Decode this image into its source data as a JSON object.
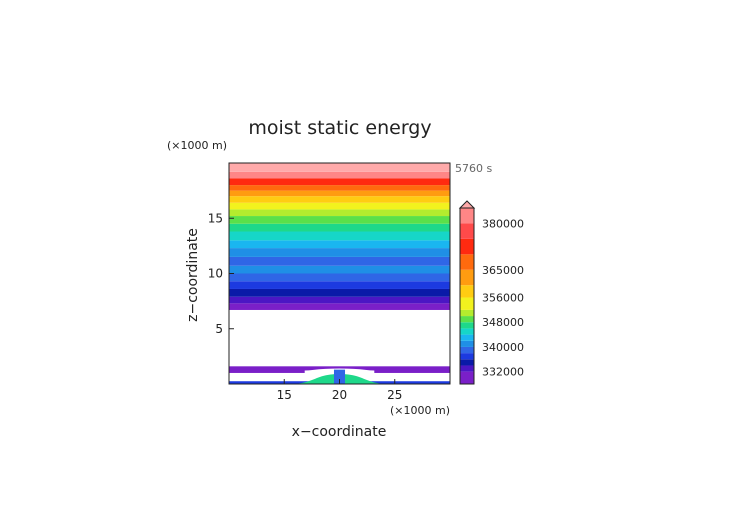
{
  "chart_data": {
    "type": "heatmap",
    "title": "moist static energy",
    "xlabel": "x−coordinate",
    "ylabel": "z−coordinate",
    "x_unit": "(×1000 m)",
    "y_unit": "(×1000 m)",
    "time_label": "5760 s",
    "xlim": [
      10,
      30
    ],
    "ylim": [
      0,
      20
    ],
    "x_ticks": [
      15,
      20,
      25
    ],
    "y_ticks": [
      5,
      10,
      15
    ],
    "colorbar": {
      "min": 328000,
      "max": 385000,
      "extend": "max",
      "tick_values": [
        332000,
        340000,
        348000,
        356000,
        365000,
        380000
      ],
      "tick_labels": [
        "332000",
        "340000",
        "348000",
        "356000",
        "365000",
        "380000"
      ],
      "levels": [
        {
          "lo": 328000,
          "hi": 332000,
          "color": "#7a1fc8"
        },
        {
          "lo": 332000,
          "hi": 334000,
          "color": "#4b16c4"
        },
        {
          "lo": 334000,
          "hi": 336000,
          "color": "#0a1aa8"
        },
        {
          "lo": 336000,
          "hi": 338000,
          "color": "#1c3ae0"
        },
        {
          "lo": 338000,
          "hi": 340000,
          "color": "#2f66e6"
        },
        {
          "lo": 340000,
          "hi": 342000,
          "color": "#1f8fe6"
        },
        {
          "lo": 342000,
          "hi": 344000,
          "color": "#1ab6f0"
        },
        {
          "lo": 344000,
          "hi": 346000,
          "color": "#16d6c8"
        },
        {
          "lo": 346000,
          "hi": 348000,
          "color": "#1ed88a"
        },
        {
          "lo": 348000,
          "hi": 350000,
          "color": "#5be04a"
        },
        {
          "lo": 350000,
          "hi": 352000,
          "color": "#b4ec2e"
        },
        {
          "lo": 352000,
          "hi": 356000,
          "color": "#f2f21e"
        },
        {
          "lo": 356000,
          "hi": 360000,
          "color": "#ffcc12"
        },
        {
          "lo": 360000,
          "hi": 365000,
          "color": "#ff9c10"
        },
        {
          "lo": 365000,
          "hi": 370000,
          "color": "#ff6a0e"
        },
        {
          "lo": 370000,
          "hi": 375000,
          "color": "#ff2a10"
        },
        {
          "lo": 375000,
          "hi": 380000,
          "color": "#ff4a4a"
        },
        {
          "lo": 380000,
          "hi": 385000,
          "color": "#ff8686"
        },
        {
          "lo": 385000,
          "hi": 400000,
          "color": "#ffaaaa"
        }
      ]
    },
    "upper_layer_bands": [
      {
        "z0": 6.7,
        "z1": 7.3,
        "value": 330000
      },
      {
        "z0": 7.3,
        "z1": 7.9,
        "value": 333000
      },
      {
        "z0": 7.9,
        "z1": 8.6,
        "value": 335000
      },
      {
        "z0": 8.6,
        "z1": 9.3,
        "value": 337000
      },
      {
        "z0": 9.3,
        "z1": 10.0,
        "value": 339000
      },
      {
        "z0": 10.0,
        "z1": 10.7,
        "value": 341000
      },
      {
        "z0": 10.7,
        "z1": 11.5,
        "value": 339000
      },
      {
        "z0": 11.5,
        "z1": 12.3,
        "value": 341000
      },
      {
        "z0": 12.3,
        "z1": 13.0,
        "value": 343000
      },
      {
        "z0": 13.0,
        "z1": 13.8,
        "value": 345000
      },
      {
        "z0": 13.8,
        "z1": 14.5,
        "value": 347000
      },
      {
        "z0": 14.5,
        "z1": 15.2,
        "value": 349000
      },
      {
        "z0": 15.2,
        "z1": 15.8,
        "value": 351000
      },
      {
        "z0": 15.8,
        "z1": 16.4,
        "value": 354000
      },
      {
        "z0": 16.4,
        "z1": 17.0,
        "value": 358000
      },
      {
        "z0": 17.0,
        "z1": 17.5,
        "value": 362000
      },
      {
        "z0": 17.5,
        "z1": 18.0,
        "value": 367000
      },
      {
        "z0": 18.0,
        "z1": 18.6,
        "value": 372000
      },
      {
        "z0": 18.6,
        "z1": 19.2,
        "value": 382000
      },
      {
        "z0": 19.2,
        "z1": 20.0,
        "value": 390000
      }
    ],
    "surface_features": [
      {
        "x0": 10.0,
        "x1": 30.0,
        "z0": 1.0,
        "z1": 1.6,
        "value": 330000,
        "shape": "layer"
      },
      {
        "x0": 10.0,
        "x1": 30.0,
        "z0": 0.0,
        "z1": 0.25,
        "value": 337000,
        "shape": "layer"
      },
      {
        "x0": 15.5,
        "x1": 24.5,
        "z0": 0.0,
        "z1": 0.9,
        "value": 347000,
        "shape": "dome"
      },
      {
        "x0": 19.5,
        "x1": 20.5,
        "z0": 0.0,
        "z1": 1.3,
        "value": 339000,
        "shape": "plume"
      }
    ]
  }
}
